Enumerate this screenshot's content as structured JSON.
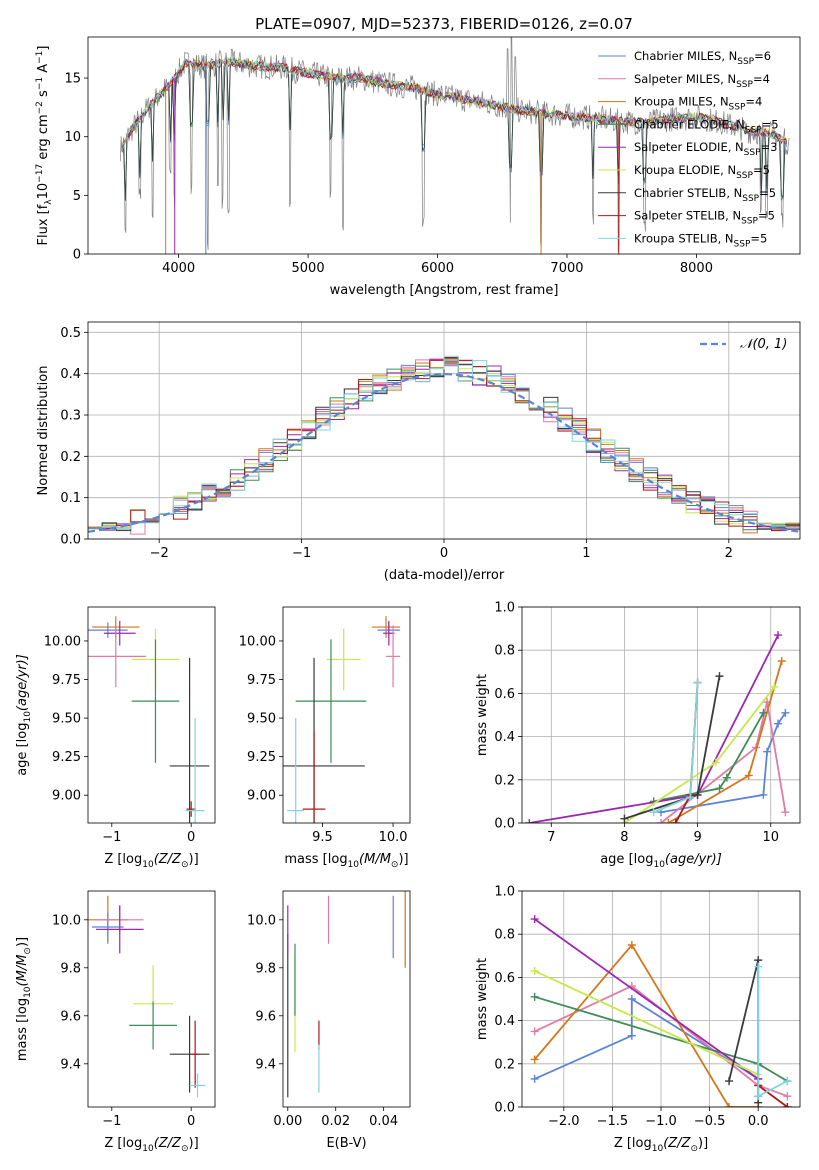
{
  "figure_title": "PLATE=0907, MJD=52373, FIBERID=0126, z=0.07",
  "colors": {
    "Chabrier MILES": "#5b84d8",
    "Salpeter MILES": "#e27aa6",
    "Kroupa MILES": "#d6761c",
    "Chabrier ELODIE": "#3f8c57",
    "Salpeter ELODIE": "#9c27b0",
    "Kroupa ELODIE": "#c6e84a",
    "Chabrier STELIB": "#3a3a3a",
    "Salpeter STELIB": "#b01818",
    "Kroupa STELIB": "#7ed6dc",
    "data": "#808080",
    "normal": "#5b84d8"
  },
  "chart_data": [
    {
      "id": "spectrum",
      "type": "line",
      "title": "PLATE=0907, MJD=52373, FIBERID=0126, z=0.07",
      "xlabel": "wavelength [Angstrom, rest frame]",
      "ylabel": "Flux [f",
      "ylabel_sub": "λ",
      "ylabel_rest": "10",
      "ylabel_exp": "−17",
      "ylabel_unit": " erg cm",
      "ylabel_cm_exp": "−2",
      "ylabel_s": " s",
      "ylabel_s_exp": "−1",
      "ylabel_A": " A",
      "ylabel_A_exp": "−1",
      "ylabel_end": "]",
      "xlim": [
        3300,
        8800
      ],
      "ylim": [
        0,
        18.5
      ],
      "xticks": [
        "4000",
        "5000",
        "6000",
        "7000",
        "8000"
      ],
      "yticks": [
        "0",
        "5",
        "10",
        "15"
      ],
      "xtick_values": [
        4000,
        5000,
        6000,
        7000,
        8000
      ],
      "ytick_values": [
        0,
        5,
        10,
        15
      ],
      "legend_position": "upper right",
      "continuum": [
        [
          3550,
          9.0
        ],
        [
          3650,
          10.8
        ],
        [
          3750,
          12.3
        ],
        [
          3850,
          13.5
        ],
        [
          3950,
          14.7
        ],
        [
          4050,
          16.3
        ],
        [
          4200,
          16.0
        ],
        [
          4400,
          16.4
        ],
        [
          4600,
          16.0
        ],
        [
          4800,
          15.9
        ],
        [
          5000,
          15.4
        ],
        [
          5200,
          15.0
        ],
        [
          5400,
          15.0
        ],
        [
          5600,
          14.5
        ],
        [
          5800,
          14.2
        ],
        [
          6000,
          13.6
        ],
        [
          6200,
          13.2
        ],
        [
          6400,
          12.8
        ],
        [
          6600,
          12.3
        ],
        [
          6800,
          12.0
        ],
        [
          7000,
          11.8
        ],
        [
          7200,
          11.6
        ],
        [
          7400,
          11.3
        ],
        [
          7600,
          11.2
        ],
        [
          7800,
          11.5
        ],
        [
          8000,
          11.7
        ],
        [
          8200,
          11.2
        ],
        [
          8400,
          10.5
        ],
        [
          8600,
          10.2
        ],
        [
          8700,
          9.5
        ]
      ],
      "absorption_lines": [
        [
          3590,
          1.0
        ],
        [
          3700,
          4.2
        ],
        [
          3800,
          3.0
        ],
        [
          3934,
          6.5
        ],
        [
          3969,
          4.0
        ],
        [
          4101,
          5.0
        ],
        [
          4227,
          0.0
        ],
        [
          4304,
          4.5
        ],
        [
          4340,
          3.5
        ],
        [
          4384,
          3.0
        ],
        [
          4861,
          3.6
        ],
        [
          5175,
          4.0
        ],
        [
          5270,
          2.0
        ],
        [
          5890,
          2.2
        ],
        [
          6563,
          1.5
        ],
        [
          6800,
          0.0
        ],
        [
          7200,
          2.5
        ],
        [
          7400,
          0.0
        ],
        [
          7600,
          1.5
        ],
        [
          8498,
          2.5
        ],
        [
          8542,
          2.8
        ],
        [
          8662,
          2.2
        ]
      ],
      "emission_lines": [
        [
          6540,
          17.5
        ],
        [
          6570,
          18.5
        ],
        [
          6600,
          16.8
        ]
      ],
      "legend": [
        {
          "name": "Chabrier MILES",
          "n": "6"
        },
        {
          "name": "Salpeter MILES",
          "n": "4"
        },
        {
          "name": "Kroupa MILES",
          "n": "4"
        },
        {
          "name": "Chabrier ELODIE",
          "n": "5"
        },
        {
          "name": "Salpeter ELODIE",
          "n": "3"
        },
        {
          "name": "Kroupa ELODIE",
          "n": "5"
        },
        {
          "name": "Chabrier STELIB",
          "n": "5"
        },
        {
          "name": "Salpeter STELIB",
          "n": "5"
        },
        {
          "name": "Kroupa STELIB",
          "n": "5"
        }
      ],
      "legend_n_prefix": ", N",
      "legend_n_sub": "SSP",
      "legend_n_eq": "="
    },
    {
      "id": "residuals",
      "type": "histogram",
      "xlabel": "(data-model)/error",
      "ylabel": "Normed distribution",
      "xlim": [
        -2.5,
        2.5
      ],
      "ylim": [
        0,
        0.525
      ],
      "xticks": [
        "−2",
        "−1",
        "0",
        "1",
        "2"
      ],
      "yticks": [
        "0.0",
        "0.1",
        "0.2",
        "0.3",
        "0.4",
        "0.5"
      ],
      "xtick_values": [
        -2,
        -1,
        0,
        1,
        2
      ],
      "ytick_values": [
        0,
        0.1,
        0.2,
        0.3,
        0.4,
        0.5
      ],
      "bin_width": 0.1,
      "bin_range": [
        -2.5,
        2.5
      ],
      "normal_label": "𝒩(0, 1)",
      "legend_position": "upper right",
      "grid": true
    },
    {
      "id": "age-vs-Z",
      "type": "scatter",
      "xlabel_pre": "Z [log",
      "xlabel_sub": "10",
      "xlabel_post": "(Z/Z",
      "xlabel_sub2": "⊙",
      "xlabel_end": ")]",
      "ylabel_pre": "age  [log",
      "ylabel_sub": "10",
      "ylabel_post": "(age/yr)]",
      "xlim": [
        -1.3,
        0.3
      ],
      "ylim": [
        8.82,
        10.22
      ],
      "xticks": [
        "−1",
        "0"
      ],
      "xtick_values": [
        -1,
        0
      ],
      "yticks": [
        "9.00",
        "9.25",
        "9.50",
        "9.75",
        "10.00"
      ],
      "ytick_values": [
        9.0,
        9.25,
        9.5,
        9.75,
        10.0
      ],
      "points": [
        {
          "series": "Kroupa MILES",
          "x": -0.95,
          "y": 10.09,
          "xerr": 0.3,
          "yerr": 0.07
        },
        {
          "series": "Chabrier MILES",
          "x": -1.05,
          "y": 10.07,
          "xerr": 0.25,
          "yerr": 0.05
        },
        {
          "series": "Salpeter ELODIE",
          "x": -0.9,
          "y": 10.05,
          "xerr": 0.2,
          "yerr": 0.08
        },
        {
          "series": "Salpeter MILES",
          "x": -0.95,
          "y": 9.9,
          "xerr": 0.38,
          "yerr": 0.2
        },
        {
          "series": "Kroupa ELODIE",
          "x": -0.45,
          "y": 9.88,
          "xerr": 0.3,
          "yerr": 0.2
        },
        {
          "series": "Chabrier ELODIE",
          "x": -0.45,
          "y": 9.61,
          "xerr": 0.3,
          "yerr": 0.4
        },
        {
          "series": "Chabrier STELIB",
          "x": -0.02,
          "y": 9.19,
          "xerr": 0.25,
          "yerr": 0.7
        },
        {
          "series": "Salpeter STELIB",
          "x": 0.0,
          "y": 8.91,
          "xerr": 0.06,
          "yerr": 0.05
        },
        {
          "series": "Kroupa STELIB",
          "x": 0.05,
          "y": 8.9,
          "xerr": 0.12,
          "yerr": 0.6
        }
      ]
    },
    {
      "id": "age-vs-mass",
      "type": "scatter",
      "xlabel_pre": "mass [log",
      "xlabel_sub": "10",
      "xlabel_post": "(M/M",
      "xlabel_sub2": "⊙",
      "xlabel_end": ")]",
      "xlim": [
        9.22,
        10.12
      ],
      "ylim": [
        8.82,
        10.22
      ],
      "xticks": [
        "9.5",
        "10.0"
      ],
      "xtick_values": [
        9.5,
        10.0
      ],
      "yticks": [
        "9.00",
        "9.25",
        "9.50",
        "9.75",
        "10.00"
      ],
      "ytick_values": [
        9.0,
        9.25,
        9.5,
        9.75,
        10.0
      ],
      "points": [
        {
          "series": "Kroupa MILES",
          "x": 9.95,
          "y": 10.09,
          "xerr": 0.1,
          "yerr": 0.07
        },
        {
          "series": "Chabrier MILES",
          "x": 9.97,
          "y": 10.07,
          "xerr": 0.08,
          "yerr": 0.05
        },
        {
          "series": "Salpeter ELODIE",
          "x": 9.97,
          "y": 10.05,
          "xerr": 0.04,
          "yerr": 0.08
        },
        {
          "series": "Salpeter MILES",
          "x": 10.0,
          "y": 9.9,
          "xerr": 0.05,
          "yerr": 0.2
        },
        {
          "series": "Kroupa ELODIE",
          "x": 9.65,
          "y": 9.88,
          "xerr": 0.12,
          "yerr": 0.2
        },
        {
          "series": "Chabrier ELODIE",
          "x": 9.56,
          "y": 9.61,
          "xerr": 0.25,
          "yerr": 0.4
        },
        {
          "series": "Chabrier STELIB",
          "x": 9.44,
          "y": 9.19,
          "xerr": 0.36,
          "yerr": 0.7
        },
        {
          "series": "Salpeter STELIB",
          "x": 9.44,
          "y": 8.91,
          "xerr": 0.08,
          "yerr": 0.5
        },
        {
          "series": "Kroupa STELIB",
          "x": 9.31,
          "y": 8.9,
          "xerr": 0.06,
          "yerr": 0.6
        }
      ]
    },
    {
      "id": "weight-vs-age",
      "type": "line",
      "xlabel_pre": "age  [log",
      "xlabel_sub": "10",
      "xlabel_post": "(age/yr)]",
      "ylabel": "mass weight",
      "xlim": [
        6.6,
        10.4
      ],
      "ylim": [
        0,
        1.0
      ],
      "xticks": [
        "7",
        "8",
        "9",
        "10"
      ],
      "xtick_values": [
        7,
        8,
        9,
        10
      ],
      "yticks": [
        "0.0",
        "0.2",
        "0.4",
        "0.6",
        "0.8",
        "1.0"
      ],
      "ytick_values": [
        0,
        0.2,
        0.4,
        0.6,
        0.8,
        1.0
      ],
      "grid": true,
      "series": [
        {
          "name": "Chabrier MILES",
          "x": [
            8.5,
            9.9,
            9.95,
            10.1,
            10.2
          ],
          "y": [
            0.05,
            0.13,
            0.33,
            0.46,
            0.51
          ]
        },
        {
          "name": "Salpeter MILES",
          "x": [
            8.5,
            9.8,
            9.95,
            10.2
          ],
          "y": [
            0.0,
            0.35,
            0.56,
            0.05
          ]
        },
        {
          "name": "Kroupa MILES",
          "x": [
            8.6,
            9.7,
            10.15
          ],
          "y": [
            0.0,
            0.22,
            0.75
          ]
        },
        {
          "name": "Chabrier ELODIE",
          "x": [
            8.4,
            9.3,
            9.4,
            9.9
          ],
          "y": [
            0.1,
            0.16,
            0.21,
            0.51
          ]
        },
        {
          "name": "Salpeter ELODIE",
          "x": [
            6.7,
            9.0,
            10.1
          ],
          "y": [
            0.0,
            0.13,
            0.87
          ]
        },
        {
          "name": "Kroupa ELODIE",
          "x": [
            8.0,
            9.25,
            10.05
          ],
          "y": [
            0.0,
            0.28,
            0.63
          ]
        },
        {
          "name": "Chabrier STELIB",
          "x": [
            8.0,
            9.0,
            9.3
          ],
          "y": [
            0.02,
            0.13,
            0.68
          ]
        },
        {
          "name": "Salpeter STELIB",
          "x": [
            8.7,
            8.9,
            9.0
          ],
          "y": [
            0.0,
            0.13,
            0.65
          ]
        },
        {
          "name": "Kroupa STELIB",
          "x": [
            8.4,
            8.9,
            9.0
          ],
          "y": [
            0.05,
            0.12,
            0.65
          ]
        }
      ]
    },
    {
      "id": "mass-vs-Z",
      "type": "scatter",
      "xlabel_pre": "Z [log",
      "xlabel_sub": "10",
      "xlabel_post": "(Z/Z",
      "xlabel_sub2": "⊙",
      "xlabel_end": ")]",
      "ylabel_pre": "mass [log",
      "ylabel_sub": "10",
      "ylabel_post": "(M/M",
      "ylabel_sub2": "⊙",
      "ylabel_end": ")]",
      "xlim": [
        -1.3,
        0.3
      ],
      "ylim": [
        9.22,
        10.12
      ],
      "xticks": [
        "−1",
        "0"
      ],
      "xtick_values": [
        -1,
        0
      ],
      "yticks": [
        "9.4",
        "9.6",
        "9.8",
        "10.0"
      ],
      "ytick_values": [
        9.4,
        9.6,
        9.8,
        10.0
      ],
      "points": [
        {
          "series": "Kroupa MILES",
          "x": -1.05,
          "y": 10.0,
          "xerr": 0.25,
          "yerr": 0.1
        },
        {
          "series": "Chabrier MILES",
          "x": -1.05,
          "y": 9.97,
          "xerr": 0.2,
          "yerr": 0.06
        },
        {
          "series": "Salpeter MILES",
          "x": -0.9,
          "y": 10.0,
          "xerr": 0.3,
          "yerr": 0.06
        },
        {
          "series": "Salpeter ELODIE",
          "x": -0.9,
          "y": 9.96,
          "xerr": 0.3,
          "yerr": 0.1
        },
        {
          "series": "Kroupa ELODIE",
          "x": -0.48,
          "y": 9.65,
          "xerr": 0.25,
          "yerr": 0.16
        },
        {
          "series": "Chabrier ELODIE",
          "x": -0.48,
          "y": 9.56,
          "xerr": 0.3,
          "yerr": 0.1
        },
        {
          "series": "Chabrier STELIB",
          "x": -0.02,
          "y": 9.44,
          "xerr": 0.25,
          "yerr": 0.16
        },
        {
          "series": "Salpeter STELIB",
          "x": 0.05,
          "y": 9.44,
          "xerr": 0.05,
          "yerr": 0.14
        },
        {
          "series": "Kroupa STELIB",
          "x": 0.08,
          "y": 9.31,
          "xerr": 0.1,
          "yerr": 0.05
        }
      ]
    },
    {
      "id": "mass-vs-EBV",
      "type": "scatter",
      "xlabel": "E(B-V)",
      "xlim": [
        -0.002,
        0.051
      ],
      "ylim": [
        9.22,
        10.12
      ],
      "xticks": [
        "0.00",
        "0.02",
        "0.04"
      ],
      "xtick_values": [
        0,
        0.02,
        0.04
      ],
      "yticks": [
        "9.4",
        "9.6",
        "9.8",
        "10.0"
      ],
      "ytick_values": [
        9.4,
        9.6,
        9.8,
        10.0
      ],
      "points": [
        {
          "series": "Chabrier STELIB",
          "x": 0.0,
          "y": 9.6,
          "yerr": 0.34
        },
        {
          "series": "Salpeter ELODIE",
          "x": 0.0,
          "y": 9.96,
          "yerr": 0.1
        },
        {
          "series": "Kroupa ELODIE",
          "x": 0.003,
          "y": 9.65,
          "yerr": 0.2
        },
        {
          "series": "Chabrier ELODIE",
          "x": 0.003,
          "y": 9.75,
          "yerr": 0.15
        },
        {
          "series": "Salpeter STELIB",
          "x": 0.013,
          "y": 9.52,
          "xerr": 0,
          "yerr": 0.06
        },
        {
          "series": "Kroupa STELIB",
          "x": 0.013,
          "y": 9.38,
          "yerr": 0.1
        },
        {
          "series": "Salpeter MILES",
          "x": 0.017,
          "y": 10.0,
          "yerr": 0.1
        },
        {
          "series": "Chabrier MILES",
          "x": 0.044,
          "y": 9.97,
          "yerr": 0.13
        },
        {
          "series": "Kroupa MILES",
          "x": 0.049,
          "y": 9.96,
          "yerr": 0.16
        }
      ]
    },
    {
      "id": "weight-vs-Z",
      "type": "line",
      "xlabel_pre": "Z [log",
      "xlabel_sub": "10",
      "xlabel_post": "(Z/Z",
      "xlabel_sub2": "⊙",
      "xlabel_end": ")]",
      "ylabel": "mass weight",
      "xlim": [
        -2.43,
        0.43
      ],
      "ylim": [
        0,
        1.0
      ],
      "xticks": [
        "−2.0",
        "−1.5",
        "−1.0",
        "−0.5",
        "0.0"
      ],
      "xtick_values": [
        -2.0,
        -1.5,
        -1.0,
        -0.5,
        0.0
      ],
      "yticks": [
        "0.0",
        "0.2",
        "0.4",
        "0.6",
        "0.8",
        "1.0"
      ],
      "ytick_values": [
        0,
        0.2,
        0.4,
        0.6,
        0.8,
        1.0
      ],
      "grid": true,
      "series": [
        {
          "name": "Chabrier MILES",
          "x": [
            -2.3,
            -1.3,
            -1.3,
            0.0,
            0.0
          ],
          "y": [
            0.13,
            0.33,
            0.5,
            0.13,
            0.05
          ]
        },
        {
          "name": "Salpeter MILES",
          "x": [
            -2.3,
            -1.3,
            0.0,
            0.3
          ],
          "y": [
            0.35,
            0.56,
            0.1,
            0.05
          ]
        },
        {
          "name": "Kroupa MILES",
          "x": [
            -2.3,
            -1.3,
            -0.3,
            0.0
          ],
          "y": [
            0.22,
            0.75,
            0.0,
            0.0
          ]
        },
        {
          "name": "Chabrier ELODIE",
          "x": [
            -2.3,
            0.0,
            0.3
          ],
          "y": [
            0.51,
            0.2,
            0.12
          ]
        },
        {
          "name": "Salpeter ELODIE",
          "x": [
            -2.3,
            0.0
          ],
          "y": [
            0.87,
            0.13
          ]
        },
        {
          "name": "Kroupa ELODIE",
          "x": [
            -2.3,
            0.0
          ],
          "y": [
            0.63,
            0.15
          ]
        },
        {
          "name": "Chabrier STELIB",
          "x": [
            -0.3,
            0.0,
            0.0
          ],
          "y": [
            0.12,
            0.68,
            0.02
          ]
        },
        {
          "name": "Salpeter STELIB",
          "x": [
            0.0,
            0.3
          ],
          "y": [
            0.1,
            0.0
          ]
        },
        {
          "name": "Kroupa STELIB",
          "x": [
            0.0,
            0.0,
            0.3
          ],
          "y": [
            0.65,
            0.05,
            0.12
          ]
        }
      ]
    }
  ]
}
